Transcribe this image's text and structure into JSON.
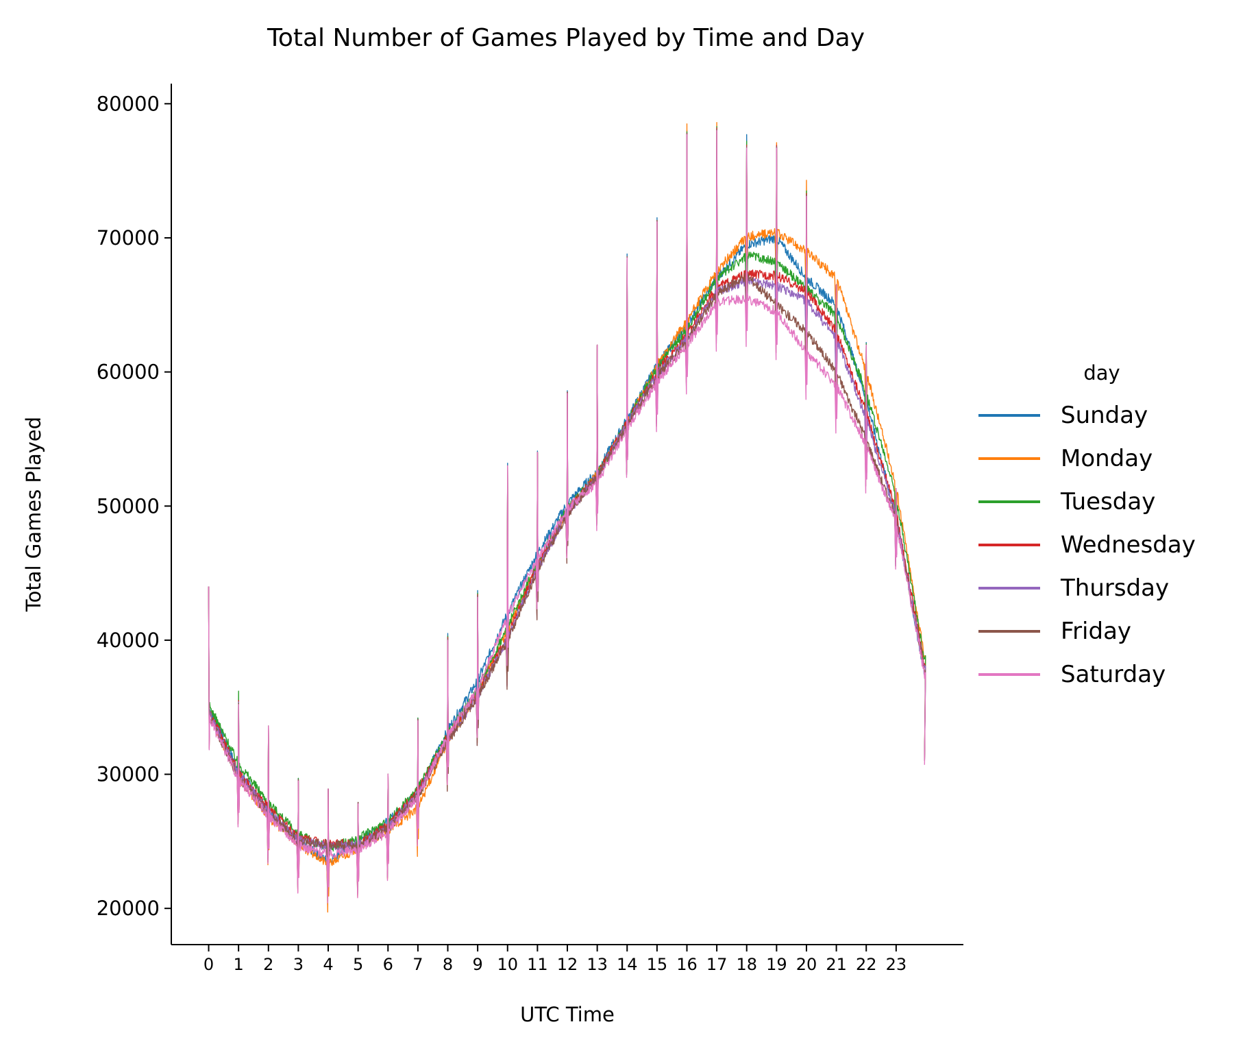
{
  "chart_data": {
    "type": "line",
    "title": "Total Number of Games Played by Time and Day",
    "xlabel": "UTC Time",
    "ylabel": "Total Games Played",
    "xlim": [
      -1.25,
      25.25
    ],
    "ylim": [
      17300,
      81500
    ],
    "x_ticks": [
      0,
      1,
      2,
      3,
      4,
      5,
      6,
      7,
      8,
      9,
      10,
      11,
      12,
      13,
      14,
      15,
      16,
      17,
      18,
      19,
      20,
      21,
      22,
      23
    ],
    "y_ticks": [
      20000,
      30000,
      40000,
      50000,
      60000,
      70000,
      80000
    ],
    "y_tick_labels": [
      "20000",
      "30000",
      "40000",
      "50000",
      "60000",
      "70000",
      "80000"
    ],
    "grid": false,
    "legend": {
      "title": "day",
      "placement": "right"
    },
    "x": [
      0,
      1,
      2,
      3,
      4,
      5,
      6,
      7,
      8,
      9,
      10,
      11,
      12,
      13,
      14,
      15,
      16,
      17,
      18,
      19,
      20,
      21,
      22,
      23,
      23.95
    ],
    "series": [
      {
        "name": "Sunday",
        "color": "#1f77b4",
        "values": [
          35000,
          30300,
          27300,
          25000,
          23500,
          25000,
          26500,
          28700,
          33300,
          37000,
          42000,
          46500,
          50200,
          52600,
          56500,
          60500,
          63500,
          67000,
          69500,
          70000,
          67000,
          65000,
          58000,
          49000,
          37500
        ],
        "spikes": [
          44000,
          35500,
          33600,
          29700,
          28900,
          27900,
          30000,
          34200,
          40500,
          43700,
          53200,
          54100,
          58600,
          62000,
          68800,
          71500,
          78000,
          76200,
          77700,
          76800,
          72000,
          66500,
          62200,
          51300,
          31000
        ]
      },
      {
        "name": "Monday",
        "color": "#ff7f0e",
        "values": [
          34500,
          29800,
          26800,
          24800,
          23300,
          24500,
          25800,
          27500,
          32500,
          36000,
          40800,
          45500,
          49600,
          52400,
          56200,
          60500,
          63800,
          67500,
          70100,
          70400,
          69000,
          67000,
          60000,
          51500,
          38700
        ],
        "spikes": [
          44000,
          35000,
          33600,
          29500,
          28900,
          27800,
          30000,
          34000,
          40000,
          43000,
          53000,
          54000,
          58400,
          62000,
          68500,
          71200,
          78500,
          78600,
          77000,
          77100,
          74300,
          66500,
          62000,
          51300,
          31000
        ]
      },
      {
        "name": "Tuesday",
        "color": "#2ca02c",
        "values": [
          35200,
          30800,
          27900,
          25500,
          24500,
          25200,
          26500,
          28900,
          33000,
          36300,
          41000,
          45800,
          49800,
          52300,
          56300,
          60300,
          63200,
          67000,
          68700,
          68200,
          66200,
          64200,
          58500,
          50800,
          38500
        ],
        "spikes": [
          44000,
          36200,
          33600,
          29700,
          28900,
          27900,
          30000,
          34200,
          40300,
          43500,
          53000,
          54000,
          58500,
          62000,
          68600,
          71300,
          77900,
          78300,
          77200,
          76700,
          73500,
          66500,
          62100,
          51300,
          31000
        ]
      },
      {
        "name": "Wednesday",
        "color": "#d62728",
        "values": [
          34800,
          30100,
          27500,
          25300,
          24800,
          24800,
          26200,
          28800,
          32800,
          36000,
          40300,
          45500,
          49600,
          52300,
          56200,
          60000,
          62800,
          66300,
          67300,
          67200,
          66000,
          63000,
          57000,
          49600,
          38000
        ],
        "spikes": [
          44000,
          35500,
          33600,
          29600,
          28900,
          27900,
          30000,
          34100,
          40200,
          43400,
          53000,
          54000,
          58500,
          62000,
          68600,
          71300,
          77800,
          78200,
          76900,
          76900,
          73300,
          66500,
          62000,
          51300,
          31000
        ]
      },
      {
        "name": "Thursday",
        "color": "#9467bd",
        "values": [
          34600,
          30000,
          27200,
          25100,
          24600,
          24700,
          26000,
          28600,
          32600,
          35800,
          40200,
          45300,
          49500,
          52200,
          56100,
          59800,
          62500,
          66000,
          66800,
          66400,
          65300,
          62500,
          56500,
          49300,
          37800
        ],
        "spikes": [
          44000,
          35400,
          33600,
          29600,
          28900,
          27900,
          30000,
          34100,
          40100,
          43300,
          53000,
          54000,
          58500,
          62000,
          68600,
          71300,
          77800,
          78100,
          76800,
          76800,
          73200,
          66500,
          62000,
          51300,
          31000
        ]
      },
      {
        "name": "Friday",
        "color": "#8c564b",
        "values": [
          34400,
          29800,
          27000,
          25000,
          24800,
          24600,
          25900,
          28400,
          32400,
          35800,
          40000,
          45200,
          49400,
          52200,
          56000,
          59600,
          62300,
          65800,
          67200,
          65000,
          63000,
          60000,
          55000,
          49000,
          37600
        ],
        "spikes": [
          44000,
          35300,
          33600,
          29600,
          28900,
          27900,
          30000,
          34100,
          40100,
          43300,
          53000,
          54000,
          58500,
          62000,
          68600,
          71300,
          77800,
          78100,
          76800,
          76800,
          73200,
          66500,
          62000,
          51300,
          31000
        ]
      },
      {
        "name": "Saturday",
        "color": "#e377c2",
        "values": [
          34300,
          29600,
          26900,
          24700,
          24000,
          24400,
          25700,
          28300,
          32900,
          36400,
          41800,
          46000,
          49800,
          51800,
          55800,
          59200,
          62000,
          65200,
          65500,
          64500,
          61500,
          59000,
          54500,
          48800,
          37400
        ],
        "spikes": [
          44000,
          35200,
          33600,
          29500,
          28900,
          27800,
          30000,
          34000,
          40000,
          43200,
          53000,
          54000,
          58400,
          62000,
          68500,
          71200,
          77700,
          78000,
          76700,
          76700,
          73100,
          66500,
          62000,
          51300,
          30700
        ]
      }
    ]
  }
}
